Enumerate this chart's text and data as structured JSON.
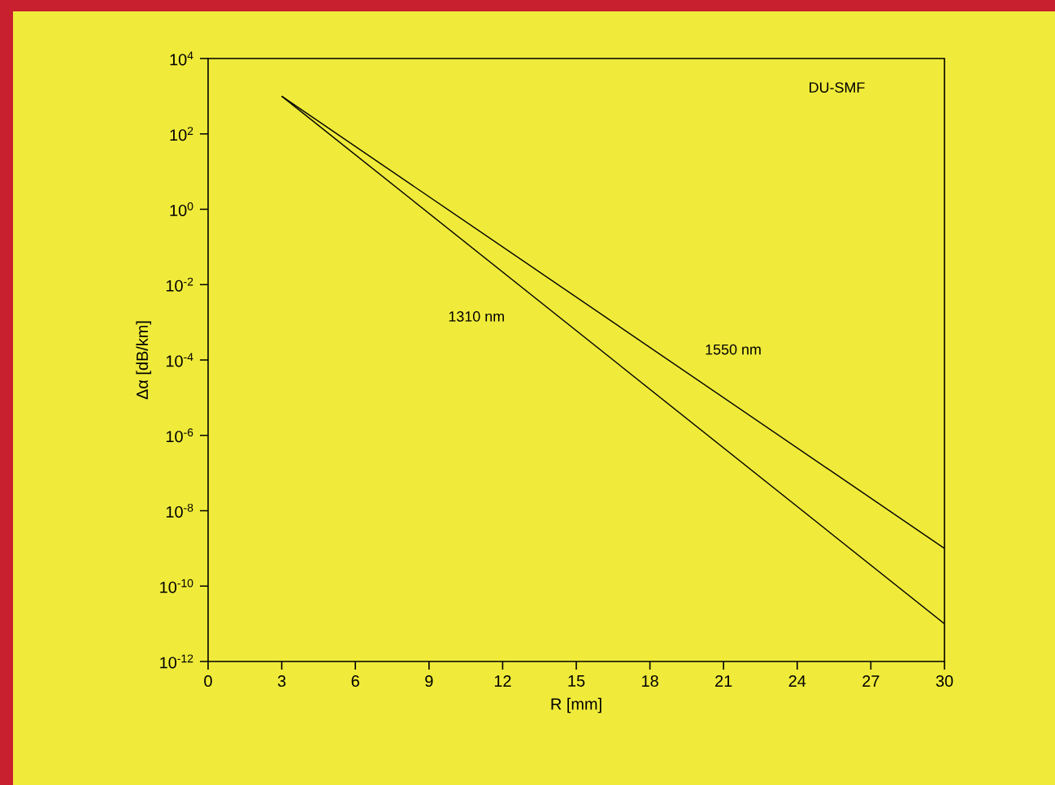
{
  "chart_data": {
    "type": "line",
    "xlabel": "R [mm]",
    "ylabel": "Δα [dB/km]",
    "log": "y",
    "xlim": [
      0,
      30
    ],
    "xticks": [
      0,
      3,
      6,
      9,
      12,
      15,
      18,
      21,
      24,
      27,
      30
    ],
    "ylim": [
      1e-12,
      10000
    ],
    "yticks": [
      {
        "value": 1e-12,
        "label": "10$^{-12}$"
      },
      {
        "value": 1e-10,
        "label": "10$^{-10}$"
      },
      {
        "value": 1e-08,
        "label": "10$^{-8}$"
      },
      {
        "value": 1e-06,
        "label": "10$^{-6}$"
      },
      {
        "value": 0.0001,
        "label": "10$^{-4}$"
      },
      {
        "value": 0.01,
        "label": "10$^{-2}$"
      },
      {
        "value": 1,
        "label": "10$^{0}$"
      },
      {
        "value": 100,
        "label": "10$^{2}$"
      },
      {
        "value": 10000,
        "label": "10$^{4}$"
      }
    ],
    "grid": false,
    "legend": false,
    "marker": "none",
    "line_style": "solid",
    "annotations": [
      "DU-SMF"
    ],
    "x": [
      3,
      30
    ],
    "series": [
      {
        "name": "1310 nm",
        "color": "#000000",
        "values": [
          1000,
          1e-11
        ]
      },
      {
        "name": "1550 nm",
        "color": "#000000",
        "values": [
          1000,
          1e-09
        ]
      }
    ]
  }
}
